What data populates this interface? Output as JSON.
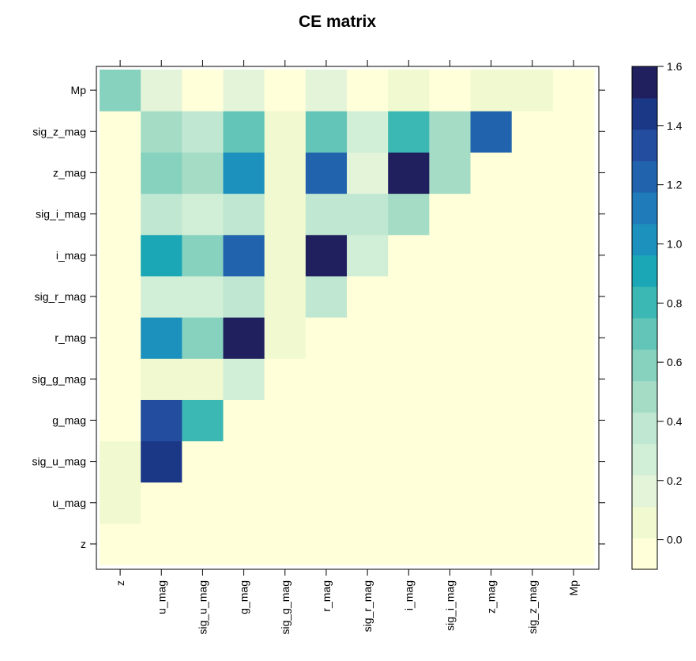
{
  "chart_data": {
    "type": "heatmap",
    "title": "CE matrix",
    "xlabel": "",
    "ylabel": "",
    "x_categories": [
      "z",
      "u_mag",
      "sig_u_mag",
      "g_mag",
      "sig_g_mag",
      "r_mag",
      "sig_r_mag",
      "i_mag",
      "sig_i_mag",
      "z_mag",
      "sig_z_mag",
      "Mp"
    ],
    "y_categories": [
      "z",
      "u_mag",
      "sig_u_mag",
      "g_mag",
      "sig_g_mag",
      "r_mag",
      "sig_r_mag",
      "i_mag",
      "sig_i_mag",
      "z_mag",
      "sig_z_mag",
      "Mp"
    ],
    "rows": {
      "z": [
        0.0,
        0.0,
        0.0,
        0.0,
        0.0,
        0.0,
        0.0,
        0.0,
        0.0,
        0.0,
        0.0,
        0.0
      ],
      "u_mag": [
        0.1,
        0.0,
        0.0,
        0.0,
        0.0,
        0.0,
        0.0,
        0.0,
        0.0,
        0.0,
        0.0,
        0.0
      ],
      "sig_u_mag": [
        0.1,
        1.4,
        0.0,
        0.0,
        0.0,
        0.0,
        0.0,
        0.0,
        0.0,
        0.0,
        0.0,
        0.0
      ],
      "g_mag": [
        0.0,
        1.3,
        0.8,
        0.0,
        0.0,
        0.0,
        0.0,
        0.0,
        0.0,
        0.0,
        0.0,
        0.0
      ],
      "sig_g_mag": [
        0.0,
        0.1,
        0.1,
        0.3,
        0.0,
        0.0,
        0.0,
        0.0,
        0.0,
        0.0,
        0.0,
        0.0
      ],
      "r_mag": [
        0.0,
        1.0,
        0.6,
        1.5,
        0.1,
        0.0,
        0.0,
        0.0,
        0.0,
        0.0,
        0.0,
        0.0
      ],
      "sig_r_mag": [
        0.0,
        0.3,
        0.3,
        0.4,
        0.1,
        0.4,
        0.0,
        0.0,
        0.0,
        0.0,
        0.0,
        0.0
      ],
      "i_mag": [
        0.0,
        0.9,
        0.6,
        1.2,
        0.1,
        1.6,
        0.3,
        0.0,
        0.0,
        0.0,
        0.0,
        0.0
      ],
      "sig_i_mag": [
        -0.1,
        0.4,
        0.3,
        0.4,
        0.1,
        0.4,
        0.4,
        0.5,
        0.0,
        0.0,
        0.0,
        0.0
      ],
      "z_mag": [
        0.0,
        0.6,
        0.5,
        1.0,
        0.1,
        1.2,
        0.2,
        1.5,
        0.5,
        0.0,
        0.0,
        0.0
      ],
      "sig_z_mag": [
        0.0,
        0.5,
        0.4,
        0.7,
        0.1,
        0.7,
        0.3,
        0.8,
        0.5,
        1.2,
        0.0,
        0.0
      ],
      "Mp": [
        0.6,
        0.2,
        0.0,
        0.2,
        0.0,
        0.2,
        0.0,
        0.1,
        0.0,
        0.1,
        0.1,
        0.0
      ]
    },
    "colorbar": {
      "range": [
        -0.1,
        1.6
      ],
      "ticks": [
        0.0,
        0.2,
        0.4,
        0.6,
        0.8,
        1.0,
        1.2,
        1.4,
        1.6
      ],
      "tick_labels": [
        "0.0",
        "0.2",
        "0.4",
        "0.6",
        "0.8",
        "1.0",
        "1.2",
        "1.4",
        "1.6"
      ],
      "colors": [
        "#ffffd9",
        "#f0f9d0",
        "#e3f4d9",
        "#d1eed6",
        "#bfe7d2",
        "#a5dcc6",
        "#86d2be",
        "#63c5b7",
        "#3cb8b4",
        "#1ca7b6",
        "#1d91bd",
        "#207bbb",
        "#2263ad",
        "#234d9f",
        "#1b3887",
        "#21205f"
      ]
    },
    "legend": "right colorbar",
    "grid": false
  }
}
